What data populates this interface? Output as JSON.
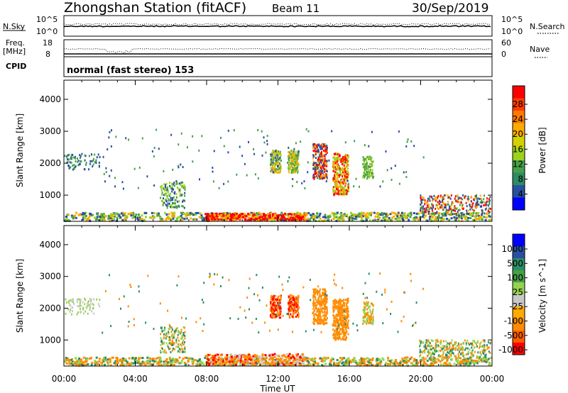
{
  "header": {
    "title": "Zhongshan Station (fitACF)",
    "beam": "Beam 11",
    "date": "30/Sep/2019"
  },
  "nsky_panel": {
    "label_left": "N.Sky",
    "left_ticks": [
      "10^5",
      "10^0"
    ],
    "right_ticks": [
      "10^5",
      "10^0"
    ],
    "label_right": "N.Search"
  },
  "freq_panel": {
    "label_left_1": "Freq.",
    "label_left_2": "[MHz]",
    "left_ticks": [
      "18",
      "8"
    ],
    "right_ticks": [
      "60",
      "0"
    ],
    "label_right": "Nave"
  },
  "cpid_panel": {
    "label": "CPID",
    "text": "normal (fast stereo) 153"
  },
  "chart_data": [
    {
      "type": "heatmap",
      "title": "",
      "xlabel": "",
      "ylabel": "Slant Range [km]",
      "x_ticks": [
        "00:00",
        "04:00",
        "08:00",
        "12:00",
        "16:00",
        "20:00",
        "00:00"
      ],
      "y_ticks": [
        1000,
        2000,
        3000,
        4000
      ],
      "xlim_hours": [
        0,
        24
      ],
      "ylim_km": [
        180,
        4600
      ],
      "colorbar": {
        "label": "Power [dB]",
        "ticks": [
          "28",
          "24",
          "20",
          "16",
          "12",
          "8",
          "4"
        ],
        "colors": [
          "#ff0000",
          "#ff3c00",
          "#ff7800",
          "#ffaa00",
          "#d2d200",
          "#9bd21e",
          "#46a046",
          "#2d8c64",
          "#2850a0",
          "#0000ff"
        ]
      },
      "colors": {
        "blue": "#2850a0",
        "green": "#46a046",
        "lime": "#9bd21e",
        "orange": "#ffaa00",
        "red": "#ff0000"
      }
    },
    {
      "type": "heatmap",
      "title": "",
      "xlabel": "Time UT",
      "ylabel": "Slant Range [km]",
      "x_ticks": [
        "00:00",
        "04:00",
        "08:00",
        "12:00",
        "16:00",
        "20:00",
        "00:00"
      ],
      "y_ticks": [
        1000,
        2000,
        3000,
        4000
      ],
      "xlim_hours": [
        0,
        24
      ],
      "ylim_km": [
        180,
        4600
      ],
      "colorbar": {
        "label": "Velocity [m s^-1]",
        "ticks": [
          "1000",
          "500",
          "100",
          "25",
          "-25",
          "-100",
          "-500",
          "-1000"
        ],
        "colors": [
          "#0000ff",
          "#2850a0",
          "#2d8c64",
          "#46a046",
          "#96d250",
          "#c8c8c8",
          "#ffaa00",
          "#ff8c00",
          "#ff5a00",
          "#ff0000"
        ]
      },
      "colors": {
        "gray": "#c8c8c8",
        "green": "#2d8c64",
        "lime": "#96d250",
        "orange": "#ff8c00",
        "red": "#ff0000"
      }
    }
  ]
}
